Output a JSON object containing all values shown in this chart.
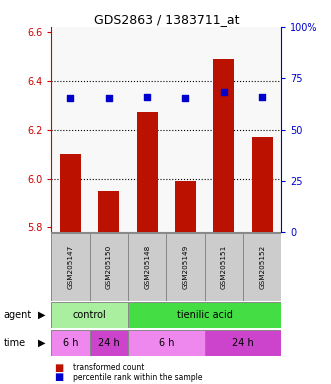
{
  "title": "GDS2863 / 1383711_at",
  "samples": [
    "GSM205147",
    "GSM205150",
    "GSM205148",
    "GSM205149",
    "GSM205151",
    "GSM205152"
  ],
  "bar_values": [
    6.1,
    5.95,
    6.27,
    5.99,
    6.49,
    6.17
  ],
  "bar_color": "#bb1100",
  "percentile_values": [
    6.33,
    6.33,
    6.335,
    6.33,
    6.355,
    6.335
  ],
  "percentile_color": "#0000cc",
  "ymin": 5.78,
  "ymax": 6.62,
  "y_left_ticks": [
    5.8,
    6.0,
    6.2,
    6.4,
    6.6
  ],
  "y_right_ticks": [
    0,
    25,
    50,
    75,
    100
  ],
  "y_right_labels": [
    "0",
    "25",
    "50",
    "75",
    "100%"
  ],
  "gridline_y": [
    6.0,
    6.2,
    6.4
  ],
  "agent_groups": [
    {
      "label": "control",
      "start": 0,
      "end": 2,
      "color": "#aaeea0"
    },
    {
      "label": "tienilic acid",
      "start": 2,
      "end": 6,
      "color": "#44dd44"
    }
  ],
  "time_groups": [
    {
      "label": "6 h",
      "start": 0,
      "end": 1,
      "color": "#ee88ee"
    },
    {
      "label": "24 h",
      "start": 1,
      "end": 2,
      "color": "#cc44cc"
    },
    {
      "label": "6 h",
      "start": 2,
      "end": 4,
      "color": "#ee88ee"
    },
    {
      "label": "24 h",
      "start": 4,
      "end": 6,
      "color": "#cc44cc"
    }
  ],
  "legend_items": [
    {
      "label": "transformed count",
      "color": "#bb1100"
    },
    {
      "label": "percentile rank within the sample",
      "color": "#0000cc"
    }
  ],
  "bar_width": 0.55,
  "left_axis_color": "#cc0000",
  "right_axis_color": "#0000cc",
  "sample_box_color": "#cccccc",
  "bg_color": "#ffffff"
}
